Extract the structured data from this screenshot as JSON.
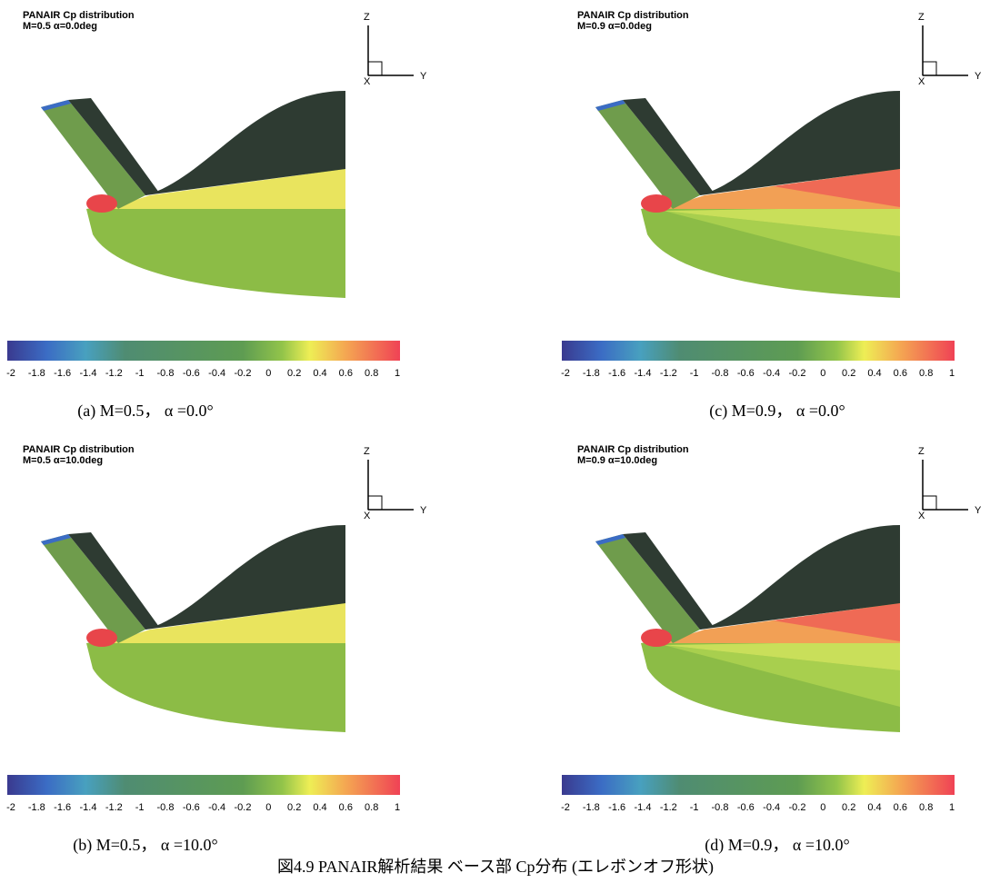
{
  "panels": [
    {
      "title": "PANAIR Cp distribution",
      "condition": "M=0.5 α=0.0deg",
      "caption": "(a) M=0.5， α =0.0°"
    },
    {
      "title": "PANAIR Cp distribution",
      "condition": "M=0.9 α=0.0deg",
      "caption": "(c) M=0.9， α =0.0°"
    },
    {
      "title": "PANAIR Cp distribution",
      "condition": "M=0.5 α=10.0deg",
      "caption": "(b) M=0.5， α =10.0°"
    },
    {
      "title": "PANAIR Cp distribution",
      "condition": "M=0.9 α=10.0deg",
      "caption": "(d) M=0.9， α =10.0°"
    }
  ],
  "colorbar": {
    "ticks": [
      -2,
      -1.8,
      -1.6,
      -1.4,
      -1.2,
      -1,
      -0.8,
      -0.6,
      -0.4,
      -0.2,
      0,
      0.2,
      0.4,
      0.6,
      0.8,
      1
    ]
  },
  "axes": {
    "x": "X",
    "y": "Y",
    "z": "Z"
  },
  "figure_caption": "図4.9 PANAIR解析結果 ベース部 Cp分布 (エレボンオフ形状)"
}
